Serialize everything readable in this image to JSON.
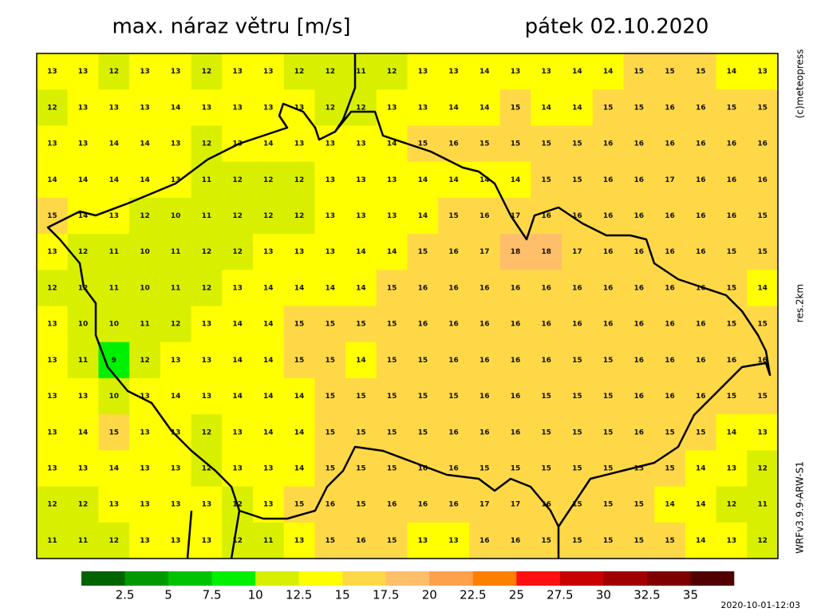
{
  "header": {
    "title": "max. náraz větru [m/s]",
    "date": "pátek 02.10.2020"
  },
  "side_labels": {
    "copyright": "(c)meteopress",
    "resolution": "res.2km",
    "model": "WRFv3.9.9-ARW-S1"
  },
  "footer": {
    "timestamp": "2020-10-01-12:03"
  },
  "field": {
    "rows": [
      [
        13,
        13,
        12,
        13,
        13,
        12,
        13,
        13,
        12,
        12,
        11,
        12,
        13,
        13,
        14,
        13,
        13,
        14,
        14,
        15,
        15,
        15,
        14,
        13
      ],
      [
        12,
        13,
        13,
        13,
        14,
        13,
        13,
        13,
        13,
        12,
        12,
        13,
        13,
        14,
        14,
        15,
        14,
        14,
        15,
        15,
        16,
        16,
        15,
        15
      ],
      [
        13,
        13,
        14,
        14,
        13,
        12,
        13,
        14,
        13,
        13,
        13,
        14,
        15,
        16,
        15,
        15,
        15,
        15,
        16,
        16,
        16,
        16,
        16,
        16
      ],
      [
        14,
        14,
        14,
        14,
        13,
        11,
        12,
        12,
        12,
        13,
        13,
        13,
        14,
        14,
        14,
        14,
        15,
        15,
        16,
        16,
        17,
        16,
        16,
        16
      ],
      [
        15,
        14,
        13,
        12,
        10,
        11,
        12,
        12,
        12,
        13,
        13,
        13,
        14,
        15,
        16,
        17,
        16,
        16,
        16,
        16,
        16,
        16,
        16,
        15
      ],
      [
        13,
        12,
        11,
        10,
        11,
        12,
        12,
        13,
        13,
        13,
        14,
        14,
        15,
        16,
        17,
        18,
        18,
        17,
        16,
        16,
        16,
        16,
        15,
        15
      ],
      [
        12,
        12,
        11,
        10,
        11,
        12,
        13,
        14,
        14,
        14,
        14,
        15,
        16,
        16,
        16,
        16,
        16,
        16,
        16,
        16,
        16,
        16,
        15,
        14
      ],
      [
        13,
        10,
        10,
        11,
        12,
        13,
        14,
        14,
        15,
        15,
        15,
        15,
        16,
        16,
        16,
        16,
        16,
        16,
        16,
        16,
        16,
        16,
        15,
        15
      ],
      [
        13,
        11,
        9,
        12,
        13,
        13,
        14,
        14,
        15,
        15,
        14,
        15,
        15,
        16,
        16,
        16,
        16,
        15,
        15,
        16,
        16,
        16,
        16,
        16
      ],
      [
        13,
        13,
        10,
        13,
        14,
        13,
        14,
        14,
        14,
        15,
        15,
        15,
        15,
        15,
        16,
        16,
        15,
        15,
        15,
        16,
        16,
        16,
        15,
        15
      ],
      [
        13,
        14,
        15,
        13,
        13,
        12,
        13,
        14,
        14,
        15,
        15,
        15,
        15,
        16,
        16,
        16,
        15,
        15,
        15,
        16,
        15,
        15,
        14,
        13
      ],
      [
        13,
        13,
        14,
        13,
        13,
        12,
        13,
        13,
        14,
        15,
        15,
        15,
        16,
        16,
        15,
        15,
        15,
        15,
        15,
        15,
        15,
        14,
        13,
        12
      ],
      [
        12,
        12,
        13,
        13,
        13,
        13,
        12,
        13,
        15,
        16,
        15,
        16,
        16,
        16,
        17,
        17,
        16,
        15,
        15,
        15,
        14,
        14,
        12,
        11
      ],
      [
        11,
        11,
        12,
        13,
        13,
        13,
        12,
        11,
        13,
        15,
        16,
        15,
        13,
        13,
        16,
        16,
        15,
        15,
        15,
        15,
        15,
        14,
        13,
        12
      ]
    ]
  },
  "colorbar": {
    "colors": [
      "#006400",
      "#009a00",
      "#00c400",
      "#00f000",
      "#d8f000",
      "#ffff00",
      "#ffd848",
      "#ffbe6a",
      "#ffa04a",
      "#ff8000",
      "#ff1010",
      "#c80000",
      "#a00000",
      "#800000",
      "#500000"
    ],
    "ticks": [
      2.5,
      5,
      7.5,
      10,
      12.5,
      15,
      17.5,
      20,
      22.5,
      25,
      27.5,
      30,
      32.5,
      35
    ]
  }
}
